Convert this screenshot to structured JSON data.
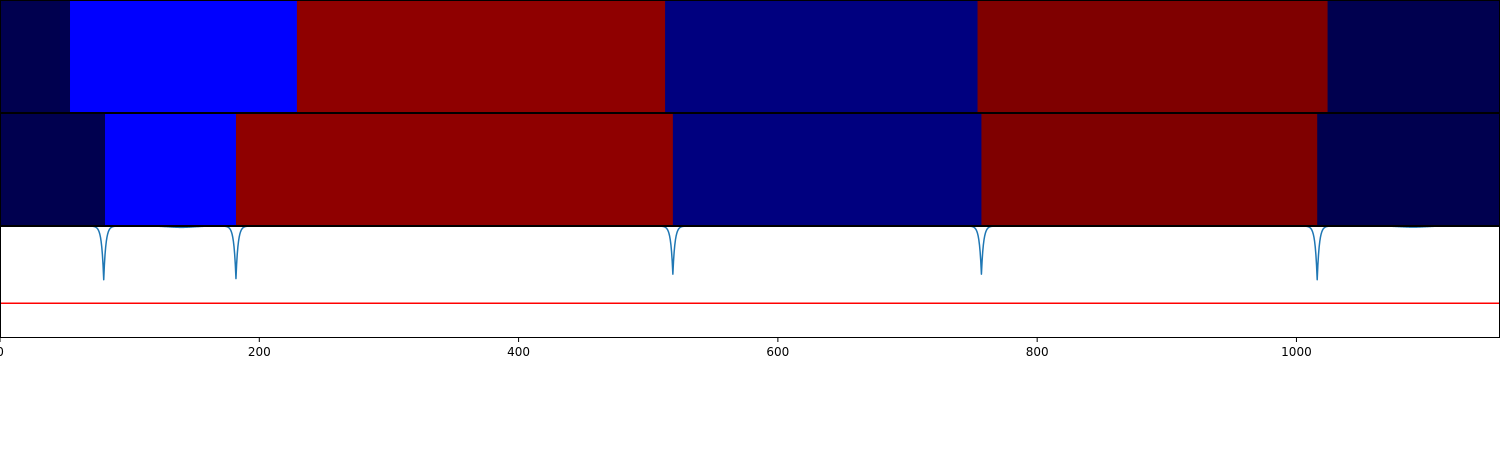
{
  "chart_data": [
    {
      "type": "heatmap",
      "title": "",
      "xlim": [
        0,
        1157
      ],
      "segments": [
        {
          "x0": 0,
          "x1": 54,
          "color": "#00004f"
        },
        {
          "x0": 54,
          "x1": 229,
          "color": "#0000ff"
        },
        {
          "x0": 229,
          "x1": 513,
          "color": "#8f0000"
        },
        {
          "x0": 513,
          "x1": 754,
          "color": "#00007f"
        },
        {
          "x0": 754,
          "x1": 1024,
          "color": "#7f0000"
        },
        {
          "x0": 1024,
          "x1": 1157,
          "color": "#00004f"
        }
      ]
    },
    {
      "type": "heatmap",
      "title": "",
      "xlim": [
        0,
        1157
      ],
      "segments": [
        {
          "x0": 0,
          "x1": 81,
          "color": "#00004f"
        },
        {
          "x0": 81,
          "x1": 182,
          "color": "#0000ff"
        },
        {
          "x0": 182,
          "x1": 519,
          "color": "#8f0000"
        },
        {
          "x0": 519,
          "x1": 757,
          "color": "#00007f"
        },
        {
          "x0": 757,
          "x1": 1016,
          "color": "#7f0000"
        },
        {
          "x0": 1016,
          "x1": 1157,
          "color": "#00004f"
        }
      ]
    },
    {
      "type": "line",
      "title": "",
      "xlabel": "",
      "ylabel": "",
      "xlim": [
        0,
        1157
      ],
      "ylim": [
        0,
        1
      ],
      "xticks": [
        0,
        200,
        400,
        600,
        800,
        1000
      ],
      "xtick_labels": [
        "0",
        "200",
        "400",
        "600",
        "800",
        "1000"
      ],
      "series": [
        {
          "color": "#1f77b4",
          "baseline": 1.0,
          "dips": [
            {
              "x": 80,
              "depth": 0.48
            },
            {
              "x": 182,
              "depth": 0.47
            },
            {
              "x": 519,
              "depth": 0.43
            },
            {
              "x": 757,
              "depth": 0.43
            },
            {
              "x": 1016,
              "depth": 0.48
            }
          ],
          "shallow_dips": [
            {
              "x": 140,
              "depth": 0.012
            },
            {
              "x": 1090,
              "depth": 0.01
            }
          ]
        }
      ],
      "threshold": {
        "y": 0.31,
        "color": "#ff0000"
      }
    }
  ]
}
